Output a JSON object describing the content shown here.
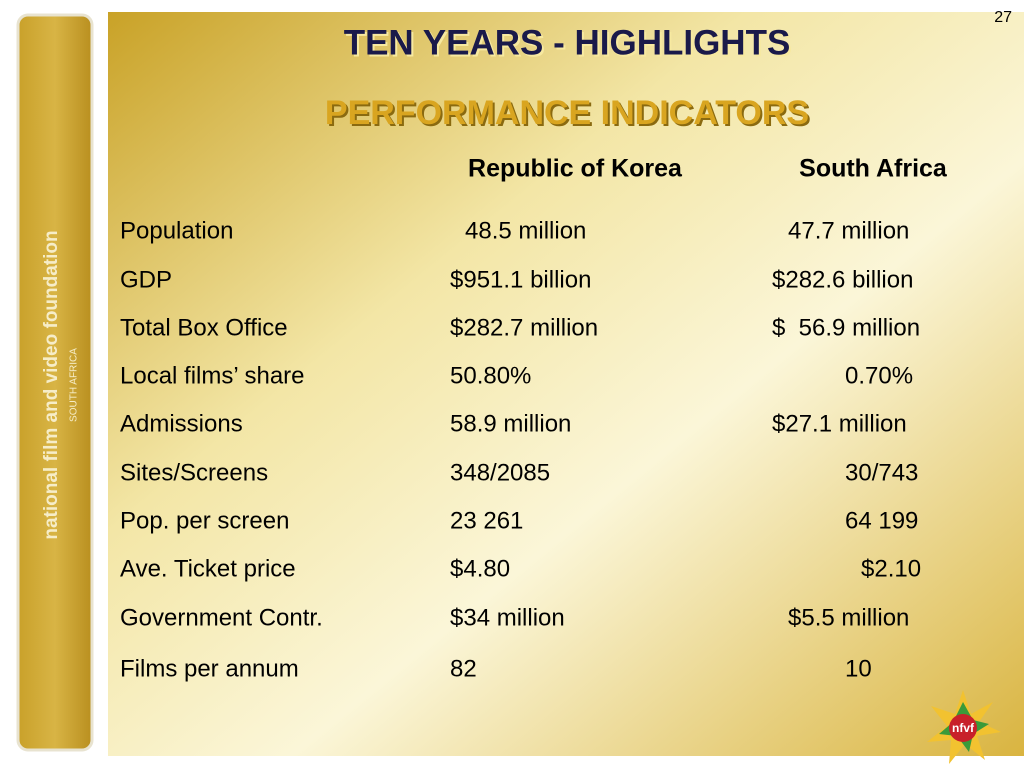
{
  "page_number": "27",
  "title": "TEN YEARS - HIGHLIGHTS",
  "subtitle": "PERFORMANCE INDICATORS",
  "sidebar": {
    "organization": "national film and video foundation",
    "country": "SOUTH AFRICA"
  },
  "logo": "nfvf",
  "table": {
    "columns": [
      "Republic of Korea",
      "South Africa"
    ],
    "rows": [
      [
        "Population",
        "48.5 million",
        "47.7 million"
      ],
      [
        "GDP",
        "$951.1 billion",
        "$282.6 billion"
      ],
      [
        "Total Box Office",
        "$282.7 million",
        "$  56.9 million"
      ],
      [
        "Local films’ share",
        "50.80%",
        "0.70%"
      ],
      [
        "Admissions",
        "58.9 million",
        "$27.1 million"
      ],
      [
        "Sites/Screens",
        "348/2085",
        "30/743"
      ],
      [
        "Pop. per screen",
        "23 261",
        "64 199"
      ],
      [
        "Ave. Ticket price",
        "$4.80",
        "$2.10"
      ],
      [
        "Government Contr.",
        "$34 million",
        "$5.5 million"
      ],
      [
        "Films per annum",
        "82",
        "10"
      ]
    ]
  }
}
